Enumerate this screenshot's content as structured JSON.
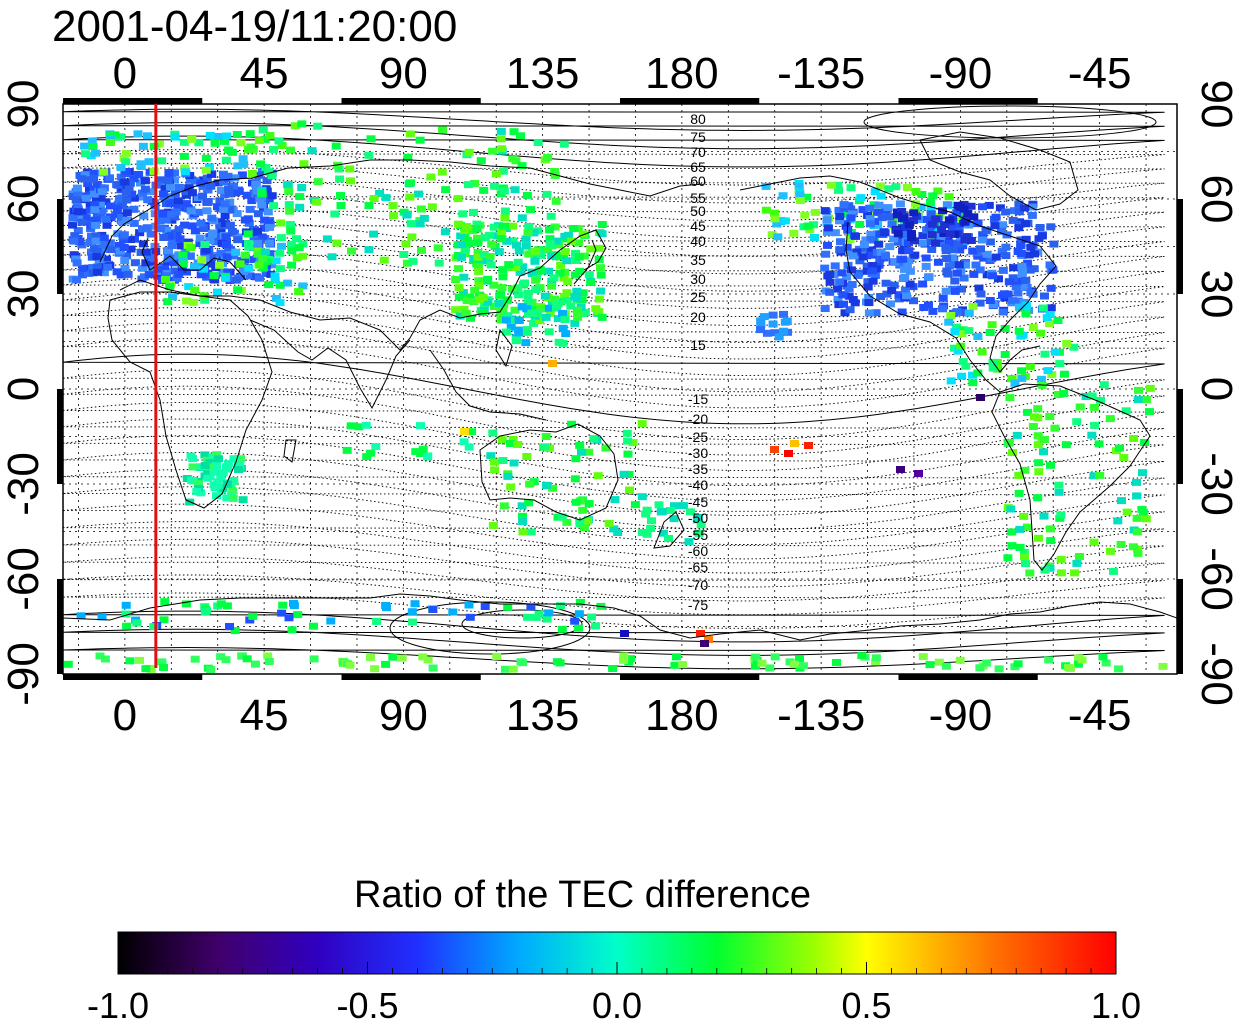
{
  "timestamp": "2001-04-19/11:20:00",
  "top_ticks": [
    "0",
    "45",
    "90",
    "135",
    "180",
    "-135",
    "-90",
    "-45"
  ],
  "bottom_ticks": [
    "0",
    "45",
    "90",
    "135",
    "180",
    "-135",
    "-90",
    "-45"
  ],
  "left_ticks": [
    "90",
    "60",
    "30",
    "0",
    "-30",
    "-60",
    "-90"
  ],
  "right_ticks": [
    "90",
    "60",
    "30",
    "0",
    "-30",
    "-60",
    "-90"
  ],
  "contour_labels_north": [
    "80",
    "75",
    "70",
    "65",
    "60",
    "55",
    "50",
    "45",
    "40",
    "35",
    "30",
    "25",
    "20",
    "15"
  ],
  "contour_labels_south": [
    "-15",
    "-20",
    "-25",
    "-30",
    "-35",
    "-40",
    "-45",
    "-50",
    "-55",
    "-60",
    "-65",
    "-70",
    "-75"
  ],
  "colorbar": {
    "title": "Ratio of the TEC difference",
    "tick_labels": [
      "-1.0",
      "-0.5",
      "0.0",
      "0.5",
      "1.0"
    ],
    "range": [
      -1.0,
      1.0
    ],
    "colors": [
      "#000000",
      "#400070",
      "#2020ff",
      "#00b0ff",
      "#00ffe0",
      "#00ff40",
      "#80ff00",
      "#ffff00",
      "#ff8000",
      "#ff0000"
    ]
  },
  "terminator_longitude": 10,
  "colors": {
    "terminator": "#e01010",
    "frame": "#000000",
    "grid": "#000000"
  }
}
